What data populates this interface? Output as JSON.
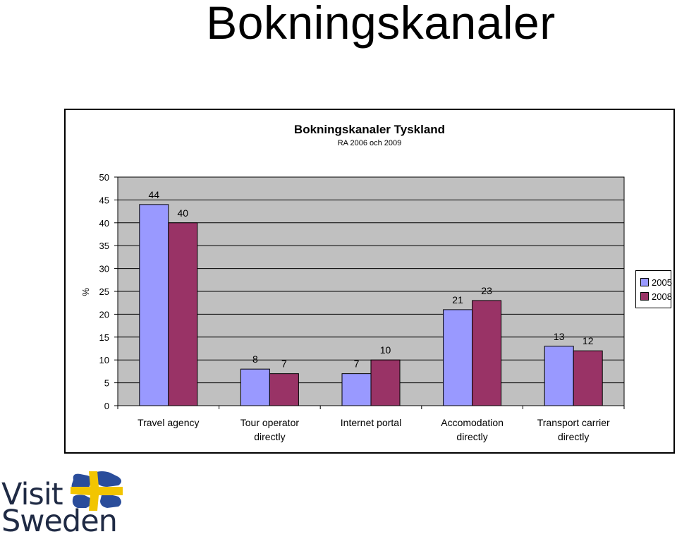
{
  "page": {
    "title": "Bokningskanaler"
  },
  "logo": {
    "line1": "Visit",
    "line2": "Sweden"
  },
  "colors": {
    "series2005": "#9999ff",
    "series2008": "#993366",
    "plotBg": "#c0c0c0"
  },
  "chart_data": {
    "type": "bar",
    "title": "Bokningskanaler Tyskland",
    "subtitle": "RA 2006 och 2009",
    "ylabel": "%",
    "xlabel": "",
    "ylim": [
      0,
      50
    ],
    "yticks": [
      0,
      5,
      10,
      15,
      20,
      25,
      30,
      35,
      40,
      45,
      50
    ],
    "categories": [
      [
        "Travel agency"
      ],
      [
        "Tour operator",
        "directly"
      ],
      [
        "Internet portal"
      ],
      [
        "Accomodation",
        "directly"
      ],
      [
        "Transport carrier",
        "directly"
      ]
    ],
    "series": [
      {
        "name": "2005",
        "values": [
          44,
          8,
          7,
          21,
          13
        ]
      },
      {
        "name": "2008",
        "values": [
          40,
          7,
          10,
          23,
          12
        ]
      }
    ],
    "legend": "right",
    "grid": true
  }
}
